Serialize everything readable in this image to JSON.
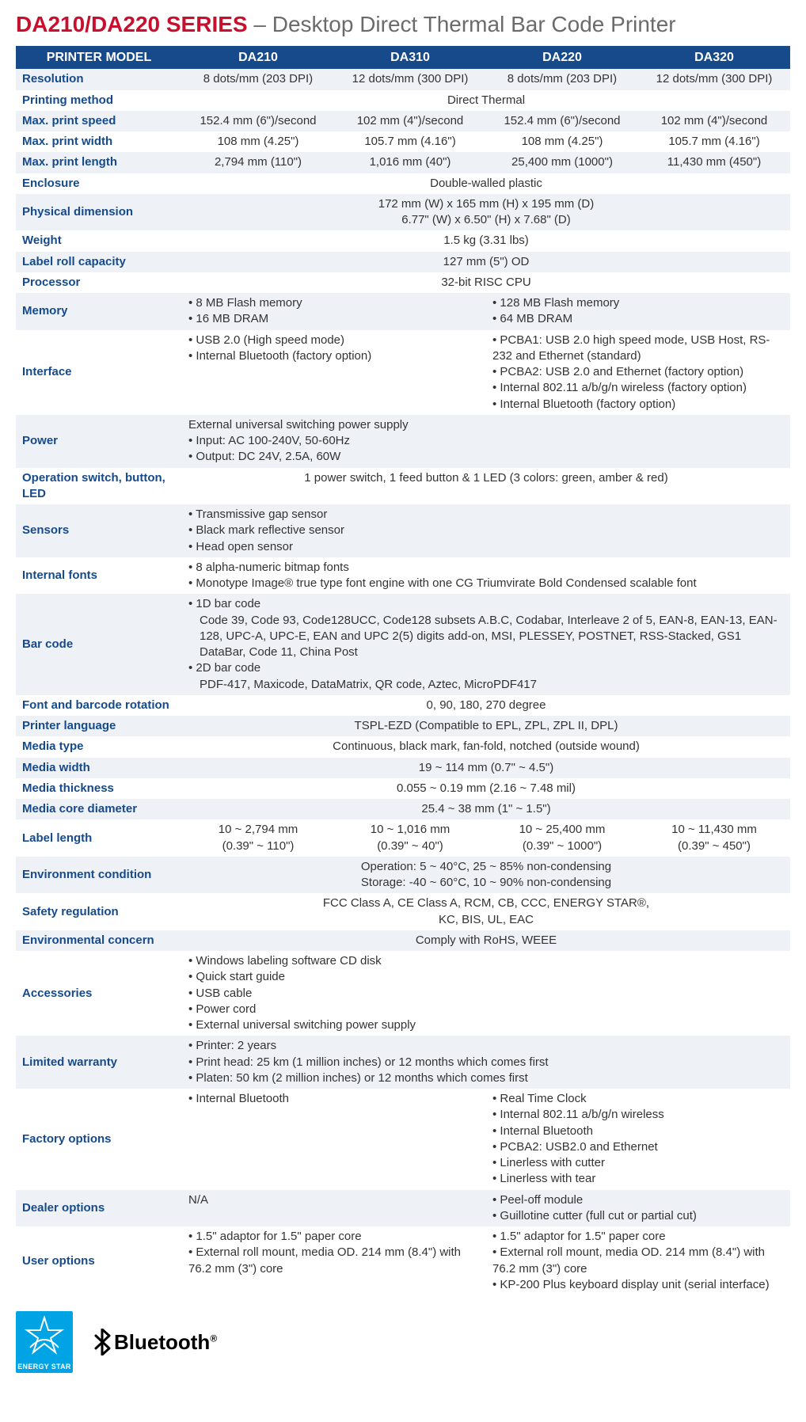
{
  "header": {
    "series": "DA210/DA220 SERIES",
    "dash": " – ",
    "subtitle": "Desktop Direct Thermal Bar Code Printer"
  },
  "table_header": [
    "PRINTER MODEL",
    "DA210",
    "DA310",
    "DA220",
    "DA320"
  ],
  "rows": {
    "resolution": {
      "label": "Resolution",
      "c1": "8 dots/mm (203 DPI)",
      "c2": "12 dots/mm (300 DPI)",
      "c3": "8 dots/mm (203 DPI)",
      "c4": "12 dots/mm (300 DPI)"
    },
    "printing_method": {
      "label": "Printing method",
      "all": "Direct Thermal"
    },
    "max_speed": {
      "label": "Max. print speed",
      "c1": "152.4 mm (6\")/second",
      "c2": "102 mm (4\")/second",
      "c3": "152.4 mm (6\")/second",
      "c4": "102 mm (4\")/second"
    },
    "max_width": {
      "label": "Max. print width",
      "c1": "108 mm (4.25\")",
      "c2": "105.7 mm (4.16\")",
      "c3": "108 mm (4.25\")",
      "c4": "105.7 mm (4.16\")"
    },
    "max_length": {
      "label": "Max. print length",
      "c1": "2,794 mm (110\")",
      "c2": "1,016 mm (40\")",
      "c3": "25,400 mm (1000\")",
      "c4": "11,430 mm (450\")"
    },
    "enclosure": {
      "label": "Enclosure",
      "all": "Double-walled plastic"
    },
    "phys_dim": {
      "label": "Physical dimension",
      "l1": "172 mm (W) x 165 mm (H) x 195 mm (D)",
      "l2": "6.77\" (W) x 6.50\" (H) x 7.68\" (D)"
    },
    "weight": {
      "label": "Weight",
      "all": "1.5 kg (3.31 lbs)"
    },
    "roll_cap": {
      "label": "Label roll capacity",
      "all": "127 mm (5\") OD"
    },
    "processor": {
      "label": "Processor",
      "all": "32-bit RISC CPU"
    },
    "memory": {
      "label": "Memory",
      "left": [
        "8 MB Flash memory",
        "16 MB DRAM"
      ],
      "right": [
        "128 MB Flash memory",
        "64 MB DRAM"
      ]
    },
    "interface": {
      "label": "Interface",
      "left": [
        "USB 2.0 (High speed mode)",
        "Internal Bluetooth (factory option)"
      ],
      "right": [
        "PCBA1: USB 2.0 high speed mode, USB Host, RS-232 and Ethernet (standard)",
        "PCBA2: USB 2.0 and Ethernet (factory option)",
        "Internal 802.11 a/b/g/n wireless (factory option)",
        "Internal Bluetooth (factory option)"
      ]
    },
    "power": {
      "label": "Power",
      "intro": "External universal switching power supply",
      "items": [
        "Input: AC 100-240V, 50-60Hz",
        "Output: DC 24V, 2.5A, 60W"
      ]
    },
    "switch": {
      "label": "Operation switch, button, LED",
      "all": "1 power switch, 1 feed button & 1 LED (3 colors: green, amber & red)"
    },
    "sensors": {
      "label": "Sensors",
      "items": [
        "Transmissive gap sensor",
        "Black mark reflective sensor",
        "Head open sensor"
      ]
    },
    "fonts": {
      "label": "Internal fonts",
      "items": [
        "8 alpha-numeric bitmap fonts",
        "Monotype Image® true type font engine with one CG Triumvirate Bold Condensed scalable font"
      ]
    },
    "barcode": {
      "label": "Bar code",
      "b1d_h": "1D bar code",
      "b1d_t": "Code 39, Code 93, Code128UCC, Code128 subsets A.B.C, Codabar, Interleave 2 of 5, EAN-8, EAN-13, EAN-128, UPC-A, UPC-E, EAN and UPC 2(5) digits add-on, MSI, PLESSEY, POSTNET, RSS-Stacked, GS1 DataBar, Code 11, China Post",
      "b2d_h": "2D bar code",
      "b2d_t": "PDF-417, Maxicode, DataMatrix, QR code, Aztec, MicroPDF417"
    },
    "rotation": {
      "label": "Font and barcode rotation",
      "all": "0, 90, 180, 270 degree"
    },
    "lang": {
      "label": "Printer language",
      "all": "TSPL-EZD (Compatible to EPL, ZPL, ZPL II, DPL)"
    },
    "media_type": {
      "label": "Media type",
      "all": "Continuous, black mark, fan-fold, notched (outside wound)"
    },
    "media_width": {
      "label": "Media width",
      "all": "19 ~ 114 mm (0.7\" ~ 4.5\")"
    },
    "media_thick": {
      "label": "Media thickness",
      "all": "0.055 ~ 0.19 mm (2.16 ~ 7.48 mil)"
    },
    "media_core": {
      "label": "Media core diameter",
      "all": "25.4 ~ 38 mm (1\" ~ 1.5\")"
    },
    "label_len": {
      "label": "Label length",
      "c1a": "10 ~ 2,794 mm",
      "c1b": "(0.39\" ~ 110\")",
      "c2a": "10 ~ 1,016 mm",
      "c2b": "(0.39\" ~ 40\")",
      "c3a": "10 ~ 25,400 mm",
      "c3b": "(0.39\" ~ 1000\")",
      "c4a": "10 ~ 11,430 mm",
      "c4b": "(0.39\" ~ 450\")"
    },
    "env": {
      "label": "Environment condition",
      "l1": "Operation: 5 ~ 40°C, 25 ~ 85% non-condensing",
      "l2": "Storage: -40 ~ 60°C, 10 ~ 90% non-condensing"
    },
    "safety": {
      "label": "Safety regulation",
      "l1": "FCC Class A, CE Class A, RCM, CB, CCC, ENERGY STAR®,",
      "l2": "KC, BIS, UL, EAC"
    },
    "envcon": {
      "label": "Environmental concern",
      "all": "Comply with RoHS, WEEE"
    },
    "accessories": {
      "label": "Accessories",
      "items": [
        "Windows labeling software CD disk",
        "Quick start guide",
        "USB cable",
        "Power cord",
        "External universal switching power supply"
      ]
    },
    "warranty": {
      "label": "Limited warranty",
      "items": [
        "Printer: 2 years",
        "Print head: 25 km (1 million inches) or 12 months which comes first",
        "Platen: 50 km (2 million inches) or 12 months which comes first"
      ]
    },
    "factory": {
      "label": "Factory options",
      "left": [
        "Internal Bluetooth"
      ],
      "right": [
        "Real Time Clock",
        "Internal 802.11 a/b/g/n wireless",
        "Internal Bluetooth",
        "PCBA2: USB2.0 and Ethernet",
        "Linerless with cutter",
        "Linerless with tear"
      ]
    },
    "dealer": {
      "label": "Dealer options",
      "left_na": "N/A",
      "right": [
        "Peel-off module",
        "Guillotine cutter (full cut or partial cut)"
      ]
    },
    "user": {
      "label": "User options",
      "left": [
        "1.5\" adaptor for 1.5\" paper core",
        "External roll mount, media OD. 214 mm (8.4\") with 76.2 mm (3\") core"
      ],
      "right": [
        "1.5\" adaptor for 1.5\" paper core",
        "External roll mount, media OD. 214 mm (8.4\") with 76.2 mm (3\") core",
        "KP-200 Plus keyboard display unit (serial interface)"
      ]
    }
  },
  "footer": {
    "energy_star": "ENERGY STAR",
    "bluetooth": "Bluetooth"
  }
}
